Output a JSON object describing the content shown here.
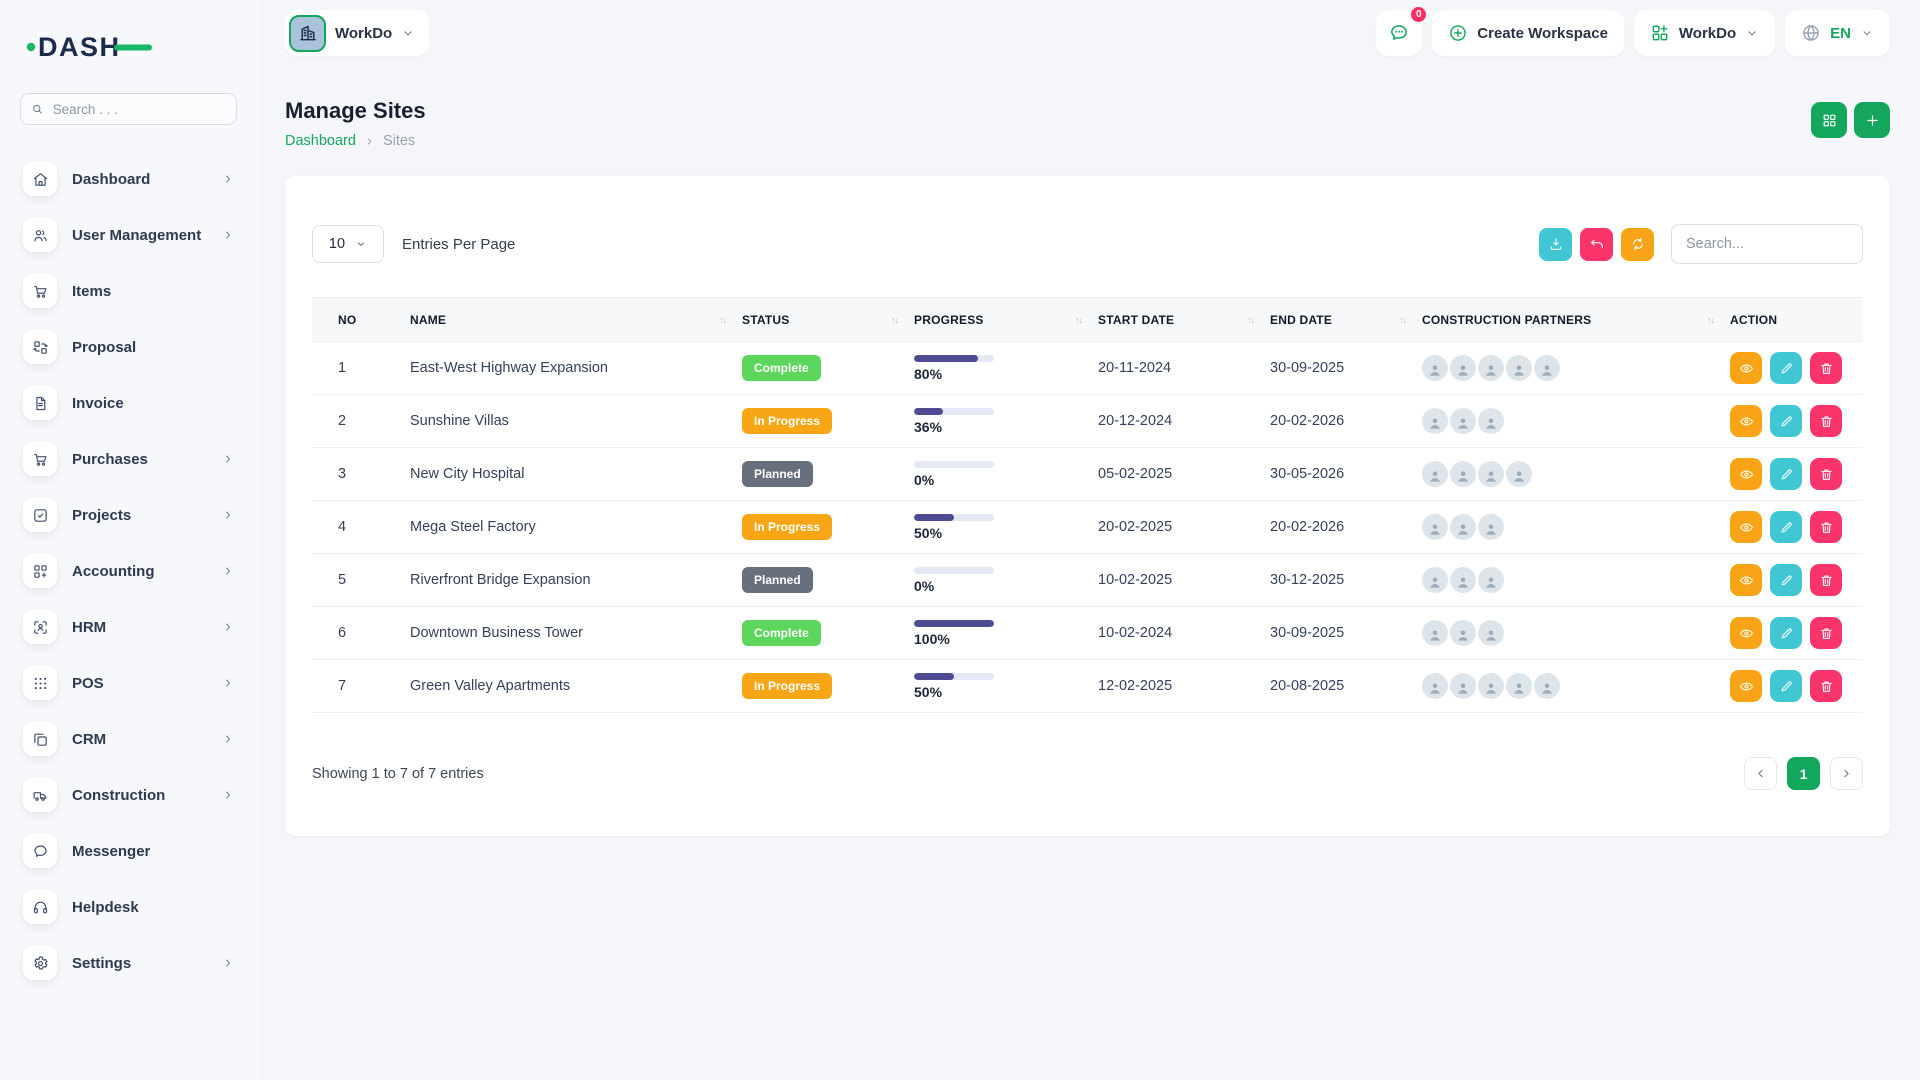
{
  "brand": {
    "logo_text": "DASH"
  },
  "colors": {
    "primary_green": "#12A75C",
    "logo_navy": "#1B2B49",
    "logo_green": "#17B765",
    "badge_pink": "#FB2F63",
    "progress_fill": "#4F4B93",
    "progress_track": "#E5E8F5"
  },
  "sidebar": {
    "search_placeholder": "Search . . .",
    "items": [
      {
        "label": "Dashboard",
        "icon": "home-icon",
        "chevron": true
      },
      {
        "label": "User Management",
        "icon": "users-icon",
        "chevron": true
      },
      {
        "label": "Items",
        "icon": "cart-icon",
        "chevron": false
      },
      {
        "label": "Proposal",
        "icon": "proposal-icon",
        "chevron": false
      },
      {
        "label": "Invoice",
        "icon": "invoice-icon",
        "chevron": false
      },
      {
        "label": "Purchases",
        "icon": "cart-icon",
        "chevron": true
      },
      {
        "label": "Projects",
        "icon": "check-square-icon",
        "chevron": true
      },
      {
        "label": "Accounting",
        "icon": "grid-plus-icon",
        "chevron": true
      },
      {
        "label": "HRM",
        "icon": "focus-user-icon",
        "chevron": true
      },
      {
        "label": "POS",
        "icon": "dots-grid-icon",
        "chevron": true
      },
      {
        "label": "CRM",
        "icon": "layers-icon",
        "chevron": true
      },
      {
        "label": "Construction",
        "icon": "truck-icon",
        "chevron": true
      },
      {
        "label": "Messenger",
        "icon": "chat-icon",
        "chevron": false
      },
      {
        "label": "Helpdesk",
        "icon": "headset-icon",
        "chevron": false
      },
      {
        "label": "Settings",
        "icon": "gear-icon",
        "chevron": true
      }
    ]
  },
  "topbar": {
    "workspace_label": "WorkDo",
    "messages_badge": "0",
    "create_workspace_label": "Create Workspace",
    "workdo_menu_label": "WorkDo",
    "language": "EN"
  },
  "page": {
    "title": "Manage Sites",
    "breadcrumb": [
      "Dashboard",
      "Sites"
    ]
  },
  "toolbar": {
    "entries_value": "10",
    "entries_label": "Entries Per Page",
    "search_placeholder": "Search...",
    "buttons": [
      {
        "name": "export-button",
        "icon": "download-icon",
        "color": "#41C6D4"
      },
      {
        "name": "reset-button",
        "icon": "undo-icon",
        "color": "#F8346B"
      },
      {
        "name": "refresh-button",
        "icon": "refresh-icon",
        "color": "#F9A416"
      }
    ]
  },
  "status_styles": {
    "Complete": "#5CD65C",
    "In Progress": "#F9A616",
    "Planned": "#68707E"
  },
  "table": {
    "columns": [
      {
        "label": "NO",
        "sortable": false
      },
      {
        "label": "NAME",
        "sortable": true
      },
      {
        "label": "STATUS",
        "sortable": true
      },
      {
        "label": "PROGRESS",
        "sortable": true
      },
      {
        "label": "START DATE",
        "sortable": true
      },
      {
        "label": "END DATE",
        "sortable": true
      },
      {
        "label": "CONSTRUCTION PARTNERS",
        "sortable": true
      },
      {
        "label": "ACTION",
        "sortable": false
      }
    ],
    "row_actions": [
      {
        "name": "view-button",
        "icon": "eye-icon",
        "color": "#F9A416"
      },
      {
        "name": "edit-button",
        "icon": "pencil-icon",
        "color": "#41C6D4"
      },
      {
        "name": "delete-button",
        "icon": "trash-icon",
        "color": "#F8346B"
      }
    ],
    "rows": [
      {
        "no": "1",
        "name": "East-West Highway Expansion",
        "status": "Complete",
        "progress": 80,
        "progress_label": "80%",
        "start": "20-11-2024",
        "end": "30-09-2025",
        "partners": 5
      },
      {
        "no": "2",
        "name": "Sunshine Villas",
        "status": "In Progress",
        "progress": 36,
        "progress_label": "36%",
        "start": "20-12-2024",
        "end": "20-02-2026",
        "partners": 3
      },
      {
        "no": "3",
        "name": "New City Hospital",
        "status": "Planned",
        "progress": 0,
        "progress_label": "0%",
        "start": "05-02-2025",
        "end": "30-05-2026",
        "partners": 4
      },
      {
        "no": "4",
        "name": "Mega Steel Factory",
        "status": "In Progress",
        "progress": 50,
        "progress_label": "50%",
        "start": "20-02-2025",
        "end": "20-02-2026",
        "partners": 3
      },
      {
        "no": "5",
        "name": "Riverfront Bridge Expansion",
        "status": "Planned",
        "progress": 0,
        "progress_label": "0%",
        "start": "10-02-2025",
        "end": "30-12-2025",
        "partners": 3
      },
      {
        "no": "6",
        "name": "Downtown Business Tower",
        "status": "Complete",
        "progress": 100,
        "progress_label": "100%",
        "start": "10-02-2024",
        "end": "30-09-2025",
        "partners": 3
      },
      {
        "no": "7",
        "name": "Green Valley Apartments",
        "status": "In Progress",
        "progress": 50,
        "progress_label": "50%",
        "start": "12-02-2025",
        "end": "20-08-2025",
        "partners": 5
      }
    ]
  },
  "footer": {
    "summary": "Showing 1 to 7 of 7 entries",
    "page": "1"
  }
}
